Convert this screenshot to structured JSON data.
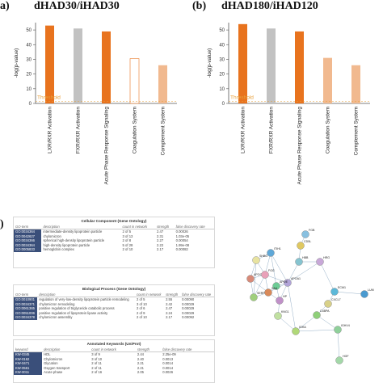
{
  "panels": {
    "a": {
      "label": "a)",
      "title": "dHAD30/iHAD30"
    },
    "b": {
      "label": "(b)",
      "title": "dHAD180/iHAD120"
    },
    "c": {
      "label": ")"
    }
  },
  "chart_data": [
    {
      "type": "bar",
      "title": "dHAD30/iHAD30",
      "ylabel": "-log(p-value)",
      "ylim": [
        0,
        55
      ],
      "yticks": [
        0,
        10,
        20,
        30,
        40,
        50
      ],
      "categories": [
        "LXR/RXR Activation",
        "FXR/RXR Activation",
        "Acute Phase Response Signaling",
        "Coagulation System",
        "Complement System"
      ],
      "values": [
        53,
        51,
        49,
        30.5,
        26
      ],
      "colors": [
        "#e8731e",
        "#c2c2c2",
        "#e8731e",
        "#ffffff",
        "#f1b98f"
      ],
      "threshold": {
        "label": "Threshold",
        "value": 1.3
      },
      "grid": false
    },
    {
      "type": "bar",
      "title": "dHAD180/iHAD120",
      "ylabel": "-log(p-value)",
      "ylim": [
        0,
        55
      ],
      "yticks": [
        0,
        10,
        20,
        30,
        40,
        50
      ],
      "categories": [
        "LXR/RXR Activation",
        "FXR/RXR Activation",
        "Acute Phase Response Signaling",
        "Coagulation System",
        "Complement System"
      ],
      "values": [
        54,
        51,
        49,
        31,
        26
      ],
      "colors": [
        "#e8731e",
        "#c2c2c2",
        "#e8731e",
        "#f1b98f",
        "#f1b98f"
      ],
      "threshold": {
        "label": "Threshold",
        "value": 1.3
      },
      "grid": false
    }
  ],
  "tables": [
    {
      "title": "Cellular Component (Gene Ontology)",
      "headers": [
        "GO-term",
        "description",
        "count in network",
        "strength",
        "false discovery rate"
      ],
      "rows": [
        [
          "GO:0034364",
          "intermediate-density lipoprotein particle",
          "2 of 5",
          "2.47",
          "0.00026"
        ],
        [
          "GO:0042627",
          "chylomicron",
          "3 of 13",
          "2.31",
          "1.03e-05"
        ],
        [
          "GO:0034366",
          "spherical high-density lipoprotein particle",
          "2 of 8",
          "2.27",
          "0.00054"
        ],
        [
          "GO:0034364",
          "high-density lipoprotein particle",
          "5 of 28",
          "2.22",
          "1.99e-08"
        ],
        [
          "GO:0005833",
          "hemoglobin complex",
          "2 of 10",
          "2.17",
          "0.00082"
        ]
      ]
    },
    {
      "title": "Biological Process (Gene Ontology)",
      "headers": [
        "GO-term",
        "description",
        "count in network",
        "strength",
        "false discovery rate"
      ],
      "rows": [
        [
          "GO:0010901",
          "regulation of very-low-density lipoprotein particle remodeling",
          "2 of 5",
          "2.55",
          "0.00090"
        ],
        [
          "GO:0034371",
          "chylomicron remodeling",
          "3 of 10",
          "2.42",
          "0.00029"
        ],
        [
          "GO:0061365",
          "positive regulation of triglyceride catabolic process",
          "2 of 6",
          "2.47",
          "0.00029"
        ],
        [
          "GO:0051006",
          "positive regulation of lipoprotein lipase activity",
          "2 of 9",
          "2.24",
          "0.00029"
        ],
        [
          "GO:0034378",
          "chylomicron assembly",
          "2 of 10",
          "2.17",
          "0.00092"
        ]
      ]
    },
    {
      "title": "Annotated Keywords (UniProt)",
      "headers": [
        "keyword",
        "description",
        "count in network",
        "strength",
        "false discovery rate"
      ],
      "rows": [
        [
          "KW-0345",
          "HDL",
          "3 of 9",
          "2.44",
          "2.25e-09"
        ],
        [
          "KW-0162",
          "Chylomicron",
          "3 of 10",
          "2.40",
          "0.0013"
        ],
        [
          "KW-0471",
          "Glycation",
          "2 of 11",
          "2.21",
          "0.0014"
        ],
        [
          "KW-0561",
          "Oxygen transport",
          "2 of 11",
          "2.21",
          "0.0014"
        ],
        [
          "KW-0011",
          "Acute phase",
          "2 of 16",
          "2.05",
          "0.0026"
        ]
      ]
    }
  ],
  "network": {
    "nodes": [
      {
        "label": "SHBG",
        "color": "#e8e3a0"
      },
      {
        "label": "ITIH1",
        "color": "#5fa8d8"
      },
      {
        "label": "APOC",
        "color": "#d88a78"
      },
      {
        "label": "FGG",
        "color": "#e9a0b8"
      },
      {
        "label": "SERPINA",
        "color": "#9fcf7c"
      },
      {
        "label": "HBB",
        "color": "#86c4d0"
      },
      {
        "label": "APOA1",
        "color": "#b1a3d8"
      },
      {
        "label": "APOE",
        "color": "#6dcc95"
      },
      {
        "label": "HP",
        "color": "#c090c8"
      },
      {
        "label": "SAA",
        "color": "#d98a5a"
      },
      {
        "label": "CD5L",
        "color": "#e0c860"
      },
      {
        "label": "FGB",
        "color": "#88c0e0"
      },
      {
        "label": "HRG",
        "color": "#c8a8d8"
      },
      {
        "label": "ECM1",
        "color": "#5cb8d8"
      },
      {
        "label": "LUM",
        "color": "#4a9ad0"
      },
      {
        "label": "CXCL7",
        "color": "#d8d088"
      },
      {
        "label": "C4BPA",
        "color": "#8ecf78"
      },
      {
        "label": "IGHA",
        "color": "#b0d878"
      },
      {
        "label": "KNG1",
        "color": "#c0e0a0"
      },
      {
        "label": "IGHV4",
        "color": "#8fd09a"
      },
      {
        "label": "HGF",
        "color": "#a3d8a8"
      }
    ]
  }
}
